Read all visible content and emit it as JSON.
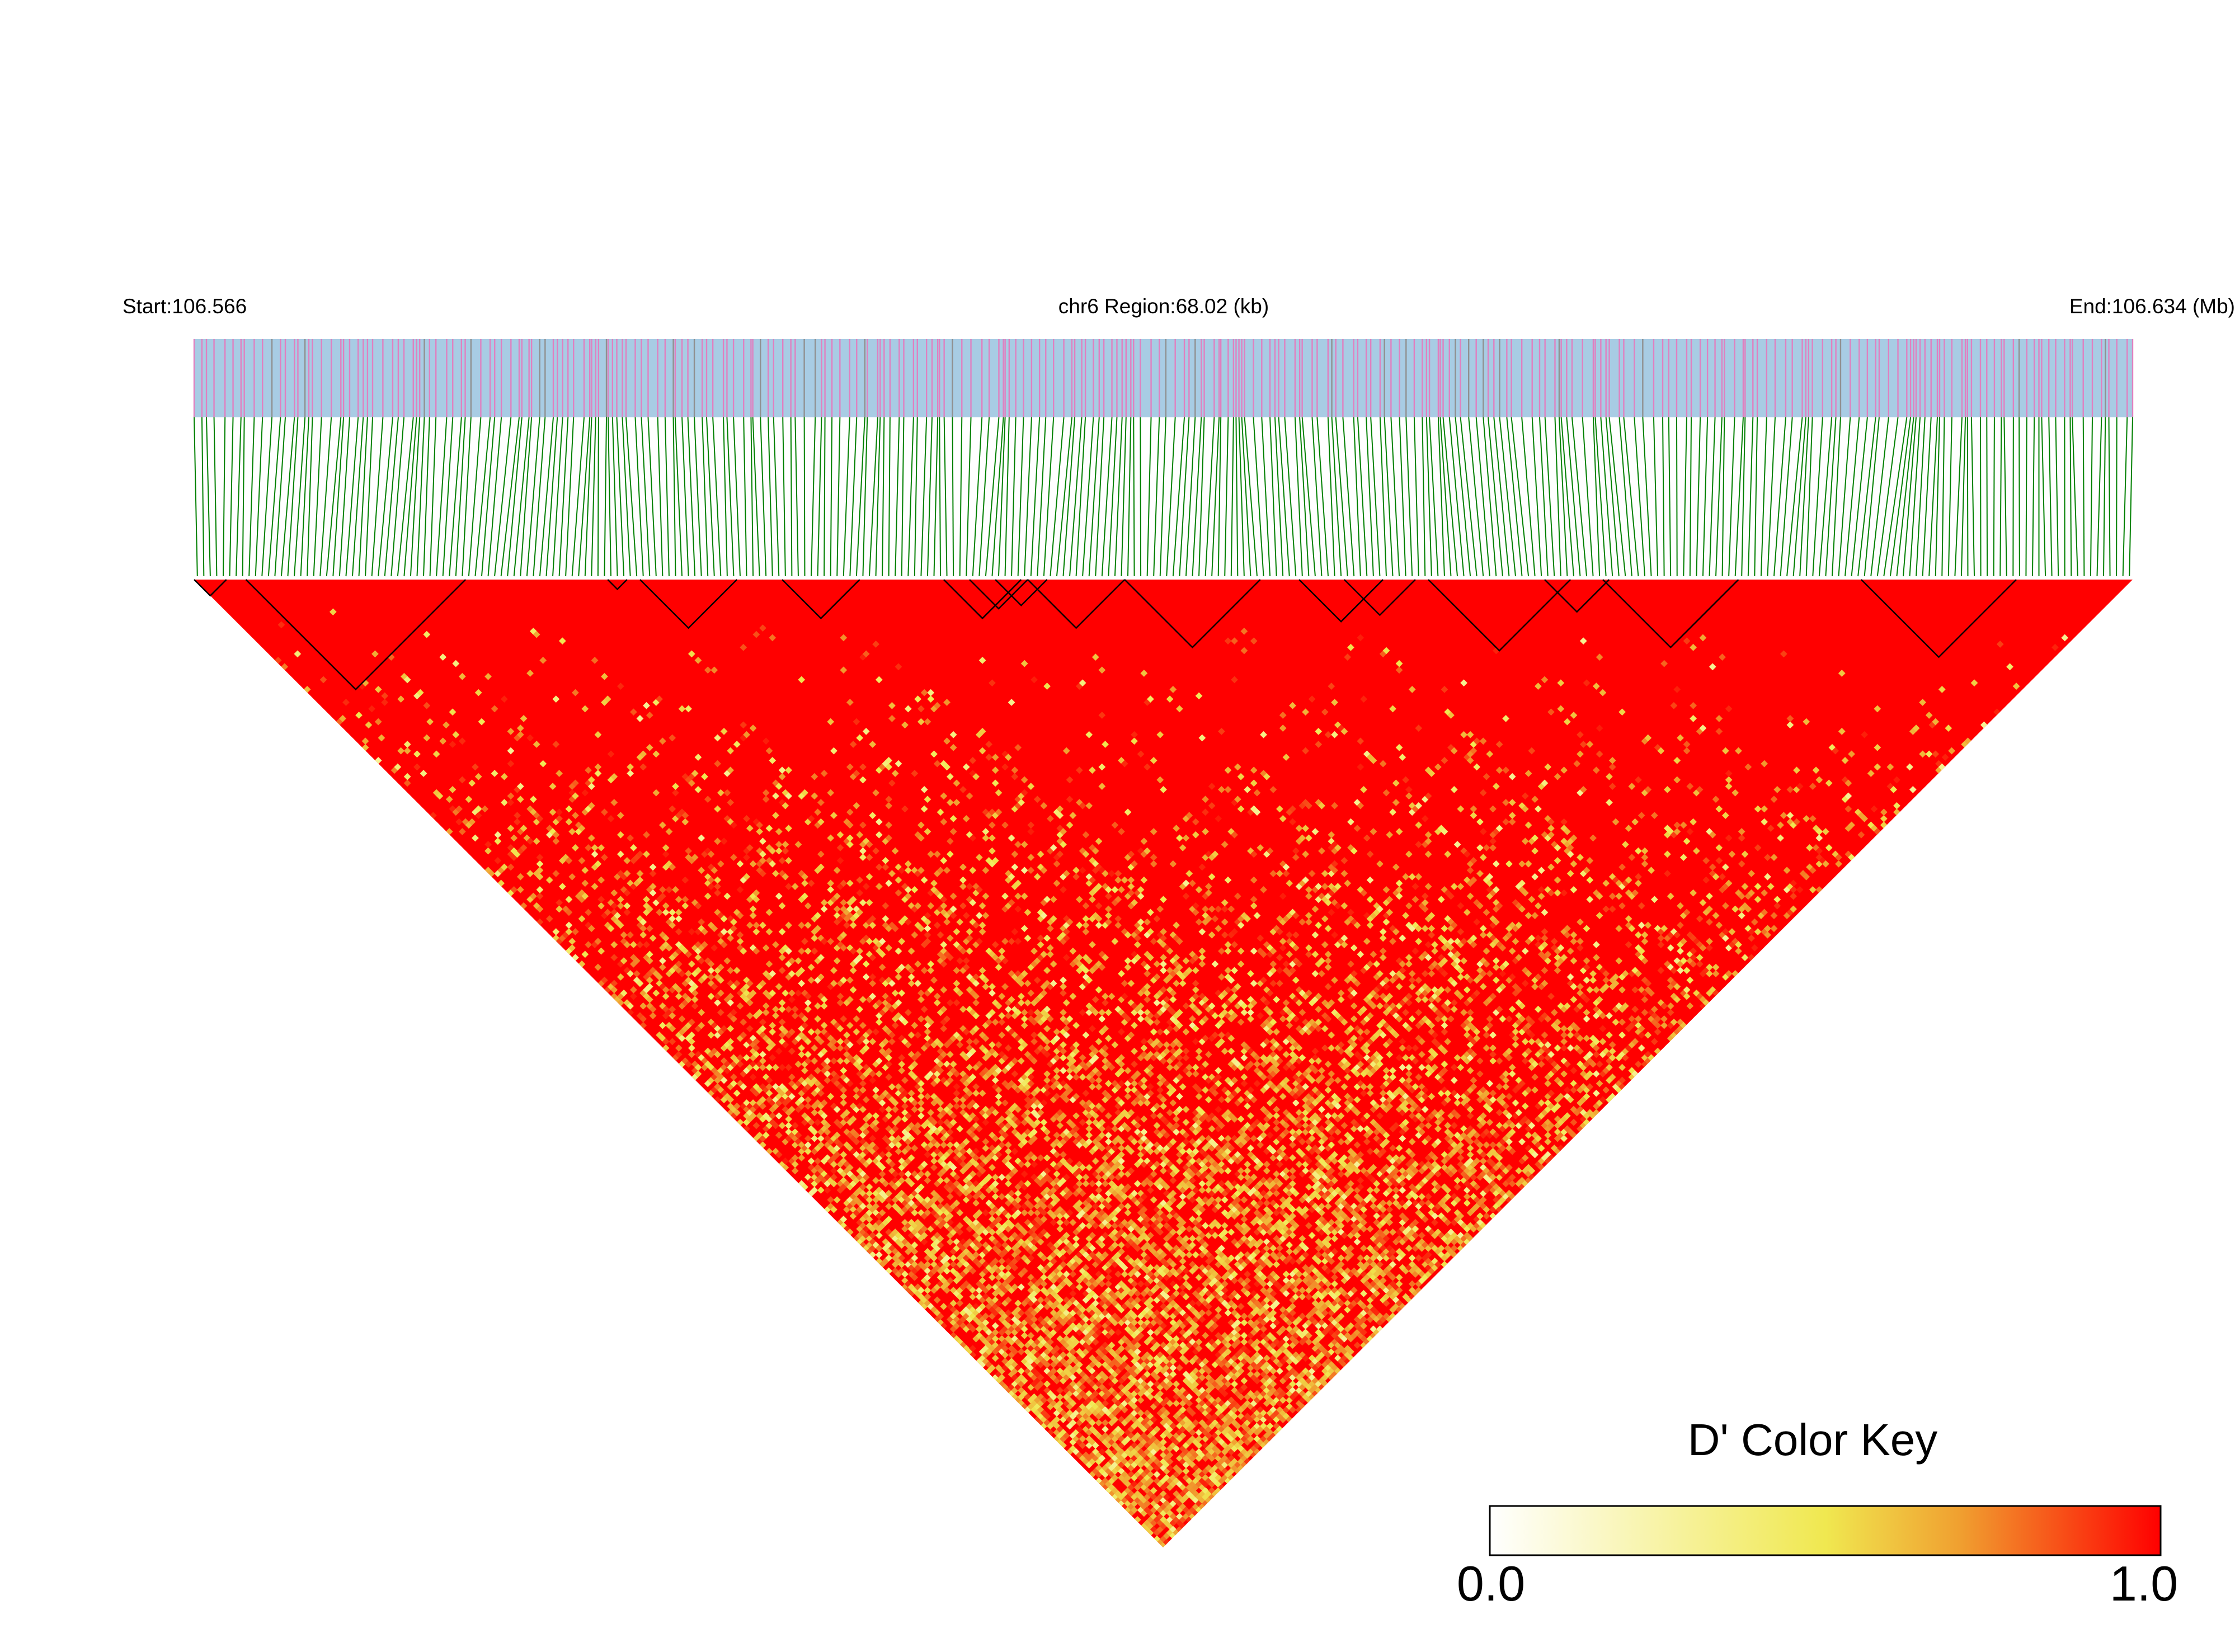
{
  "chart_data": {
    "type": "heatmap",
    "subtype": "linkage-disequilibrium-triangle",
    "start_label": "Start:106.566",
    "region_label": "chr6 Region:68.02 (kb)",
    "end_label": "End:106.634 (Mb)",
    "chromosome": "chr6",
    "start_mb": 106.566,
    "end_mb": 106.634,
    "region_kb": 68.02,
    "metric": "D'",
    "color_key": {
      "title": "D' Color Key",
      "min_label": "0.0",
      "max_label": "1.0",
      "range": [
        0.0,
        1.0
      ],
      "stops": [
        "#ffffff",
        "#f0e850",
        "#f0a030",
        "#ff0000"
      ]
    },
    "snp_count": 300,
    "dominant_value": 1.0,
    "colors": {
      "track_background": "#a8cce4",
      "snp_tick": "#e080c0",
      "connector_lines": "#008000",
      "block_outline": "#000000"
    }
  }
}
